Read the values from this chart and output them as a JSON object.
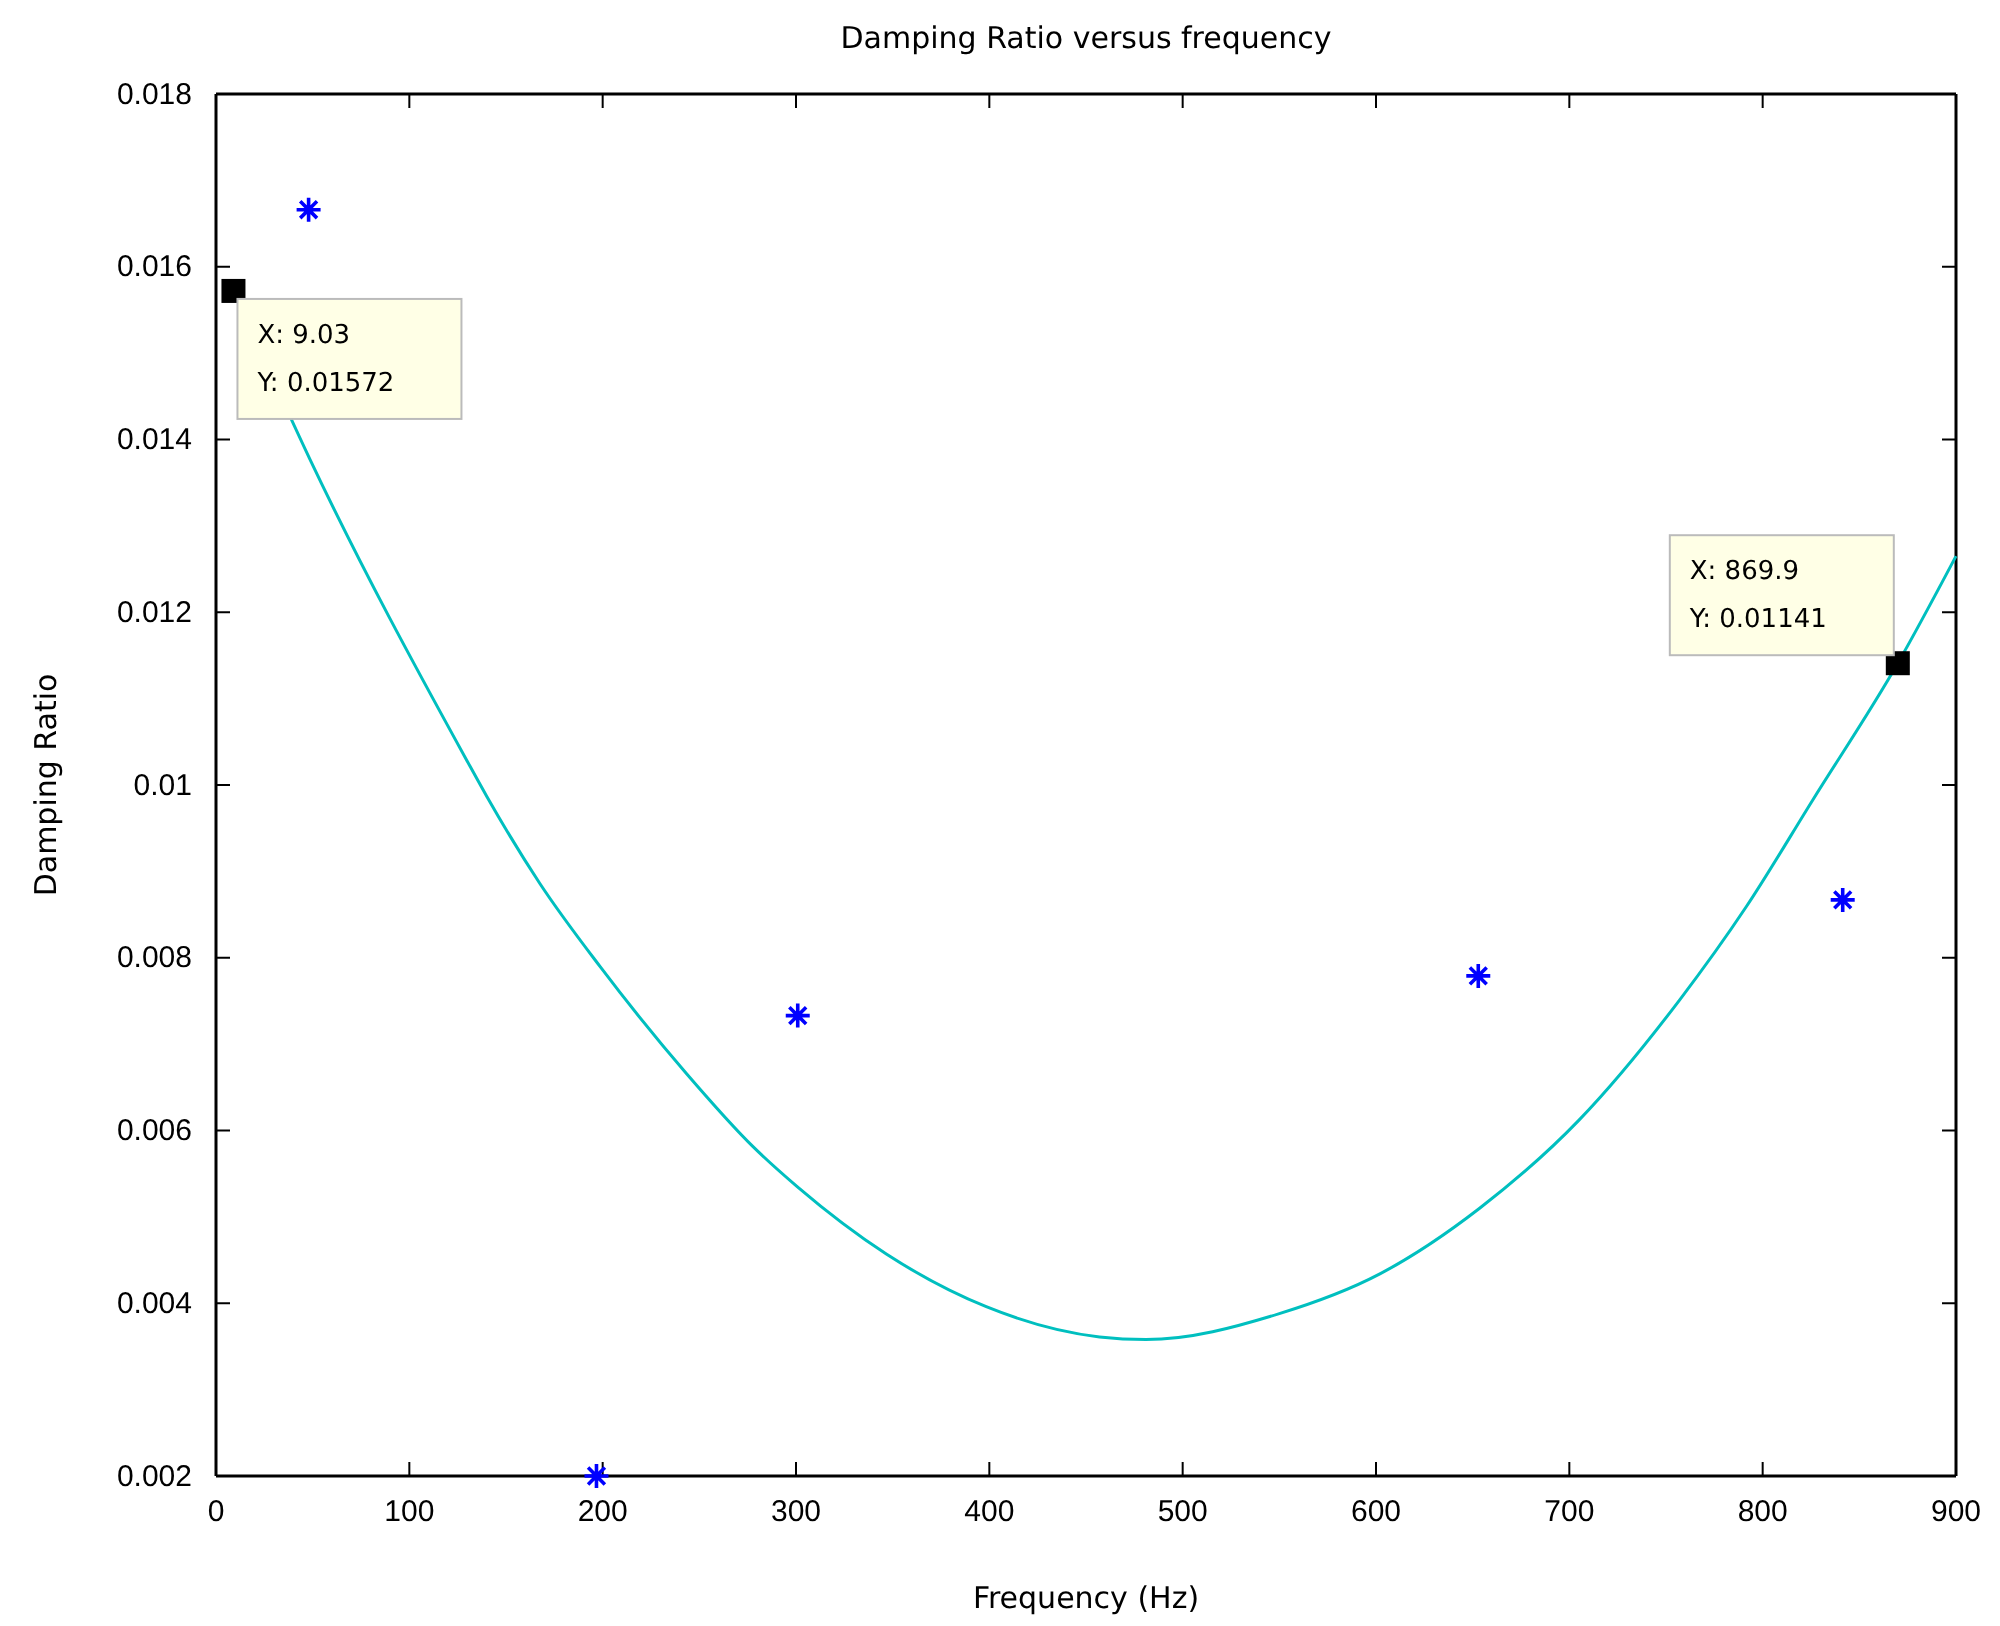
{
  "chart_data": {
    "type": "scatter",
    "title": "Damping Ratio versus frequency",
    "xlabel": "Frequency (Hz)",
    "ylabel": "Damping Ratio",
    "xlim": [
      0,
      900
    ],
    "xticks": [
      0,
      100,
      200,
      300,
      400,
      500,
      600,
      700,
      800,
      900
    ],
    "ylim": [
      0.002,
      0.018
    ],
    "yticks": [
      0.002,
      0.004,
      0.006,
      0.008,
      0.01,
      0.012,
      0.014,
      0.016,
      0.018
    ],
    "grid": false,
    "series": [
      {
        "color": "#0000ff",
        "marker": "cross",
        "x": [
          47.9,
          196.8,
          300.9,
          652.9,
          841.4
        ],
        "values": [
          0.01666,
          0.002,
          0.00733,
          0.00779,
          0.00867
        ]
      },
      {
        "type": "line",
        "color": "#00bfbf",
        "marker": "none",
        "line_style": "solid",
        "x": [
          9.03,
          48.6,
          129.6,
          140,
          167.5,
          198.6,
          243.3,
          277.9,
          300.6,
          346.7,
          398.4,
          457,
          481,
          550,
          602,
          653.6,
          705,
          757,
          791.5,
          826,
          869.9,
          900
        ],
        "values": [
          0.01572,
          0.01377,
          0.01029,
          0.00987,
          0.00886,
          0.0079,
          0.00666,
          0.00581,
          0.00535,
          0.00457,
          0.00396,
          0.00361,
          0.00358,
          0.00388,
          0.00434,
          0.0051,
          0.00612,
          0.00751,
          0.00859,
          0.00983,
          0.01141,
          0.01265
        ]
      }
    ],
    "annotations": [
      {
        "text": "X: 9.03\nY: 0.01572",
        "x": 9.03,
        "y": 0.01572
      },
      {
        "text": "X: 869.9\nY: 0.01141",
        "x": 869.9,
        "y": 0.01141
      }
    ]
  }
}
